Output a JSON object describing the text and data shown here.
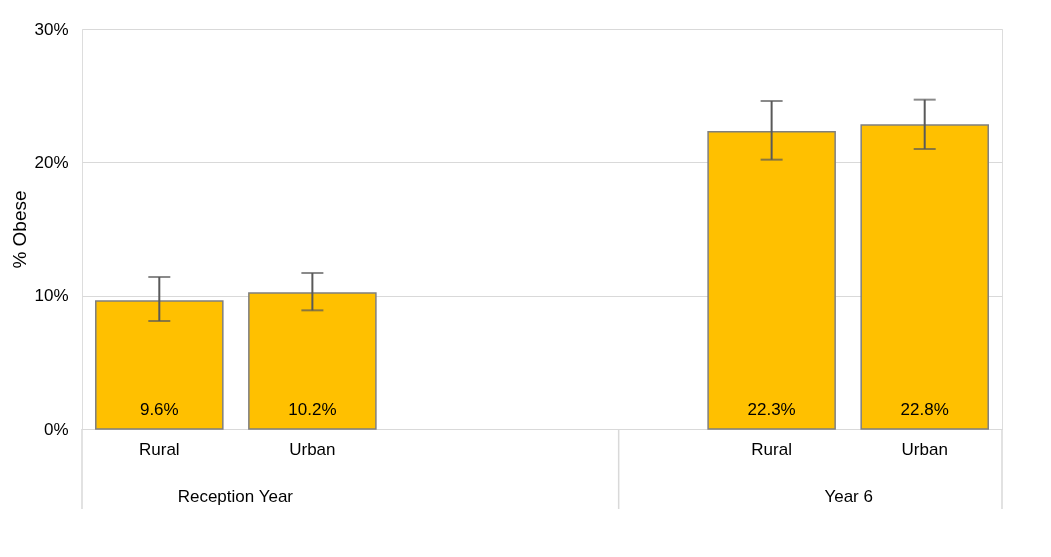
{
  "chart_data": {
    "type": "bar",
    "ylabel": "% Obese",
    "categories": [
      "Rural",
      "Urban",
      null,
      null,
      "Rural",
      "Urban"
    ],
    "values": [
      9.6,
      10.2,
      null,
      null,
      22.3,
      22.8
    ],
    "color": "#ffc000",
    "errors": [
      [
        8.1,
        11.4
      ],
      [
        8.9,
        11.7
      ],
      null,
      null,
      [
        20.2,
        24.6
      ],
      [
        21.0,
        24.7
      ]
    ],
    "value_labels": [
      "9.6%",
      "10.2%",
      null,
      null,
      "22.3%",
      "22.8%"
    ],
    "annotations": [
      "Reception Year",
      "Year 6"
    ],
    "ylim": [
      0,
      30
    ],
    "yticks": [
      {
        "value": 0,
        "label": "0%"
      },
      {
        "value": 10,
        "label": "10%"
      },
      {
        "value": 20,
        "label": "20%"
      },
      {
        "value": 30,
        "label": "30%"
      }
    ],
    "grid": "y"
  }
}
